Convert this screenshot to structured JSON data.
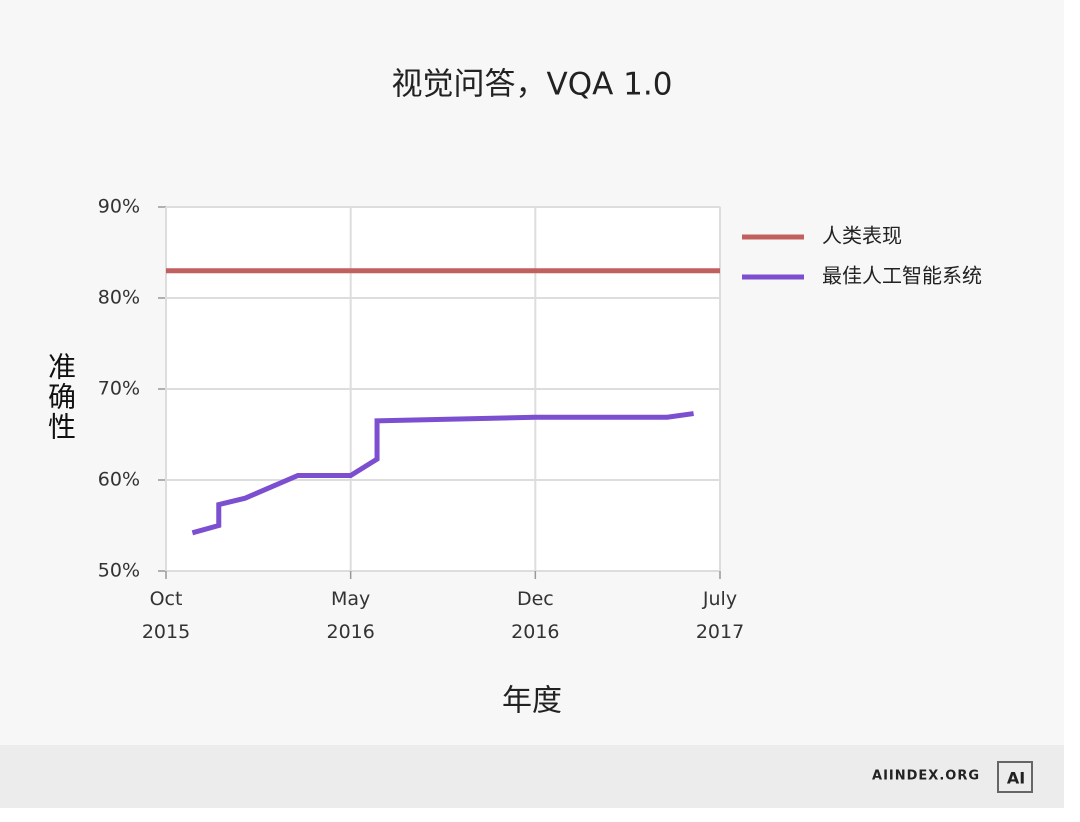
{
  "chart_data": {
    "type": "line",
    "title": "视觉问答，VQA 1.0",
    "x_label": "年度",
    "y_label": "准确性",
    "series": [
      {
        "name": "人类表现",
        "color": "#c0605f",
        "x": [
          "2015-10",
          "2017-07"
        ],
        "values": [
          83,
          83
        ]
      },
      {
        "name": "最佳人工智能系统",
        "color": "#7b4fcf",
        "x": [
          "2015-11",
          "2015-12",
          "2015-12",
          "2016-01",
          "2016-03",
          "2016-05",
          "2016-06",
          "2016-06",
          "2016-12",
          "2017-05",
          "2017-06"
        ],
        "values": [
          54.2,
          55.0,
          57.3,
          58.0,
          60.5,
          60.5,
          62.3,
          66.5,
          66.9,
          66.9,
          67.3
        ]
      }
    ],
    "xlim": [
      "2015-10",
      "2017-07"
    ],
    "xticks": [
      {
        "value": "2015-10",
        "label": "Oct 2015"
      },
      {
        "value": "2016-05",
        "label": "May 2016"
      },
      {
        "value": "2016-12",
        "label": "Dec 2016"
      },
      {
        "value": "2017-07",
        "label": "July 2017"
      }
    ],
    "ylim": [
      50,
      90
    ],
    "yticks": [
      {
        "value": 50,
        "label": "50%"
      },
      {
        "value": 60,
        "label": "60%"
      },
      {
        "value": 70,
        "label": "70%"
      },
      {
        "value": 80,
        "label": "80%"
      },
      {
        "value": 90,
        "label": "90%"
      }
    ],
    "grid": true,
    "legend": "right"
  },
  "footer": {
    "site": "AIINDEX.ORG",
    "logo": "AI"
  }
}
